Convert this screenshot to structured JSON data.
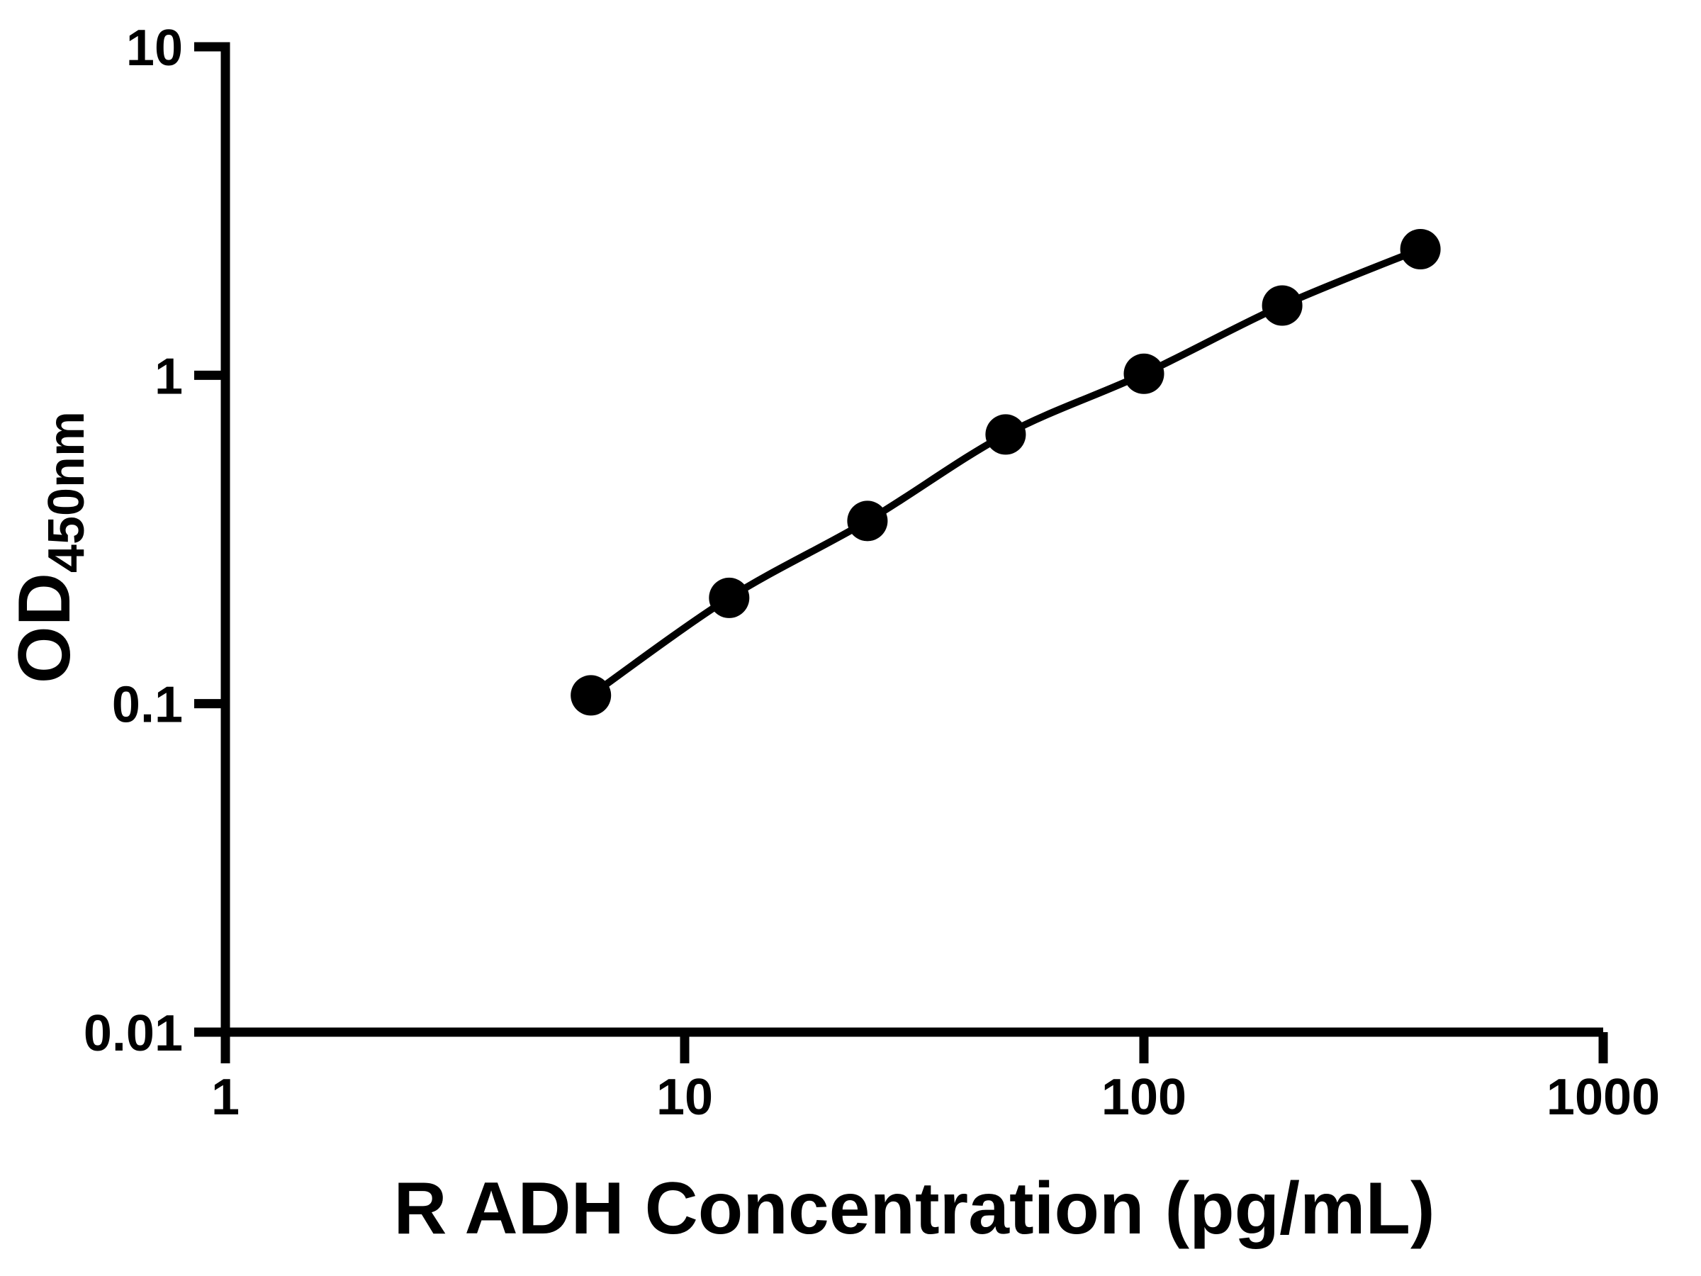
{
  "figure": {
    "background": "#ffffff",
    "foreground": "#000000"
  },
  "chart_data": {
    "type": "line",
    "x": [
      6.25,
      12.5,
      25,
      50,
      100,
      200,
      400
    ],
    "y": [
      0.106,
      0.21,
      0.36,
      0.66,
      1.01,
      1.63,
      2.42
    ],
    "xlabel": "R ADH Concentration (pg/mL)",
    "ylabel": "OD",
    "ylabel_subscript": "450nm",
    "x_scale": "log",
    "y_scale": "log",
    "xlim": [
      1,
      1000
    ],
    "ylim": [
      0.01,
      10
    ],
    "x_tick_values": [
      1,
      10,
      100,
      1000
    ],
    "x_tick_labels": [
      "1",
      "10",
      "100",
      "1000"
    ],
    "y_tick_values": [
      0.01,
      0.1,
      1,
      10
    ],
    "y_tick_labels": [
      "0.01",
      "0.1",
      "1",
      "10"
    ],
    "grid": false,
    "legend": false,
    "marker": "circle",
    "line_color": "#000000",
    "marker_color": "#000000",
    "axis_color": "#000000",
    "background": "#ffffff"
  }
}
